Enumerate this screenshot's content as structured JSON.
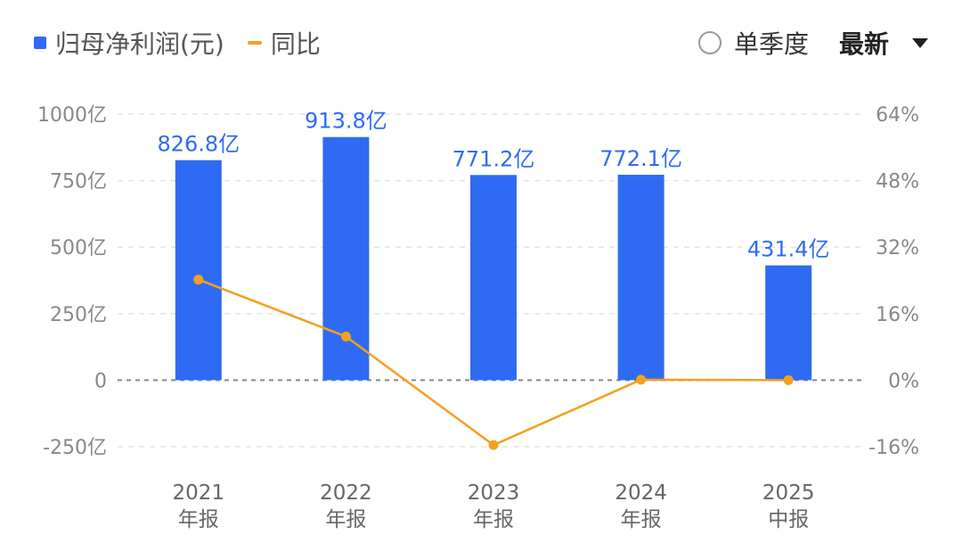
{
  "legend": {
    "bar_label": "归母净利润(元)",
    "line_label": "同比"
  },
  "controls": {
    "radio_label": "单季度",
    "select_value": "最新"
  },
  "colors": {
    "bar": "#2f6bf2",
    "line": "#f4a01f"
  },
  "chart_data": {
    "type": "bar",
    "categories": [
      {
        "year": "2021",
        "period": "年报"
      },
      {
        "year": "2022",
        "period": "年报"
      },
      {
        "year": "2023",
        "period": "年报"
      },
      {
        "year": "2024",
        "period": "年报"
      },
      {
        "year": "2025",
        "period": "中报"
      }
    ],
    "series": [
      {
        "name": "归母净利润(元)",
        "type": "bar",
        "axis": "left",
        "values": [
          826.8,
          913.8,
          771.2,
          772.1,
          431.4
        ],
        "labels": [
          "826.8亿",
          "913.8亿",
          "771.2亿",
          "772.1亿",
          "431.4亿"
        ]
      },
      {
        "name": "同比",
        "type": "line",
        "axis": "right",
        "values": [
          24.2,
          10.5,
          -15.6,
          0.1,
          0.0
        ]
      }
    ],
    "y_left": {
      "ylim": [
        -250,
        1000
      ],
      "ticks": [
        1000,
        750,
        500,
        250,
        0,
        -250
      ],
      "tick_labels": [
        "1000亿",
        "750亿",
        "500亿",
        "250亿",
        "0",
        "-250亿"
      ]
    },
    "y_right": {
      "ylim": [
        -16,
        64
      ],
      "ticks": [
        64,
        48,
        32,
        16,
        0,
        -16
      ],
      "tick_labels": [
        "64%",
        "48%",
        "32%",
        "16%",
        "0%",
        "-16%"
      ]
    },
    "grid": true,
    "legend_position": "top-left"
  }
}
